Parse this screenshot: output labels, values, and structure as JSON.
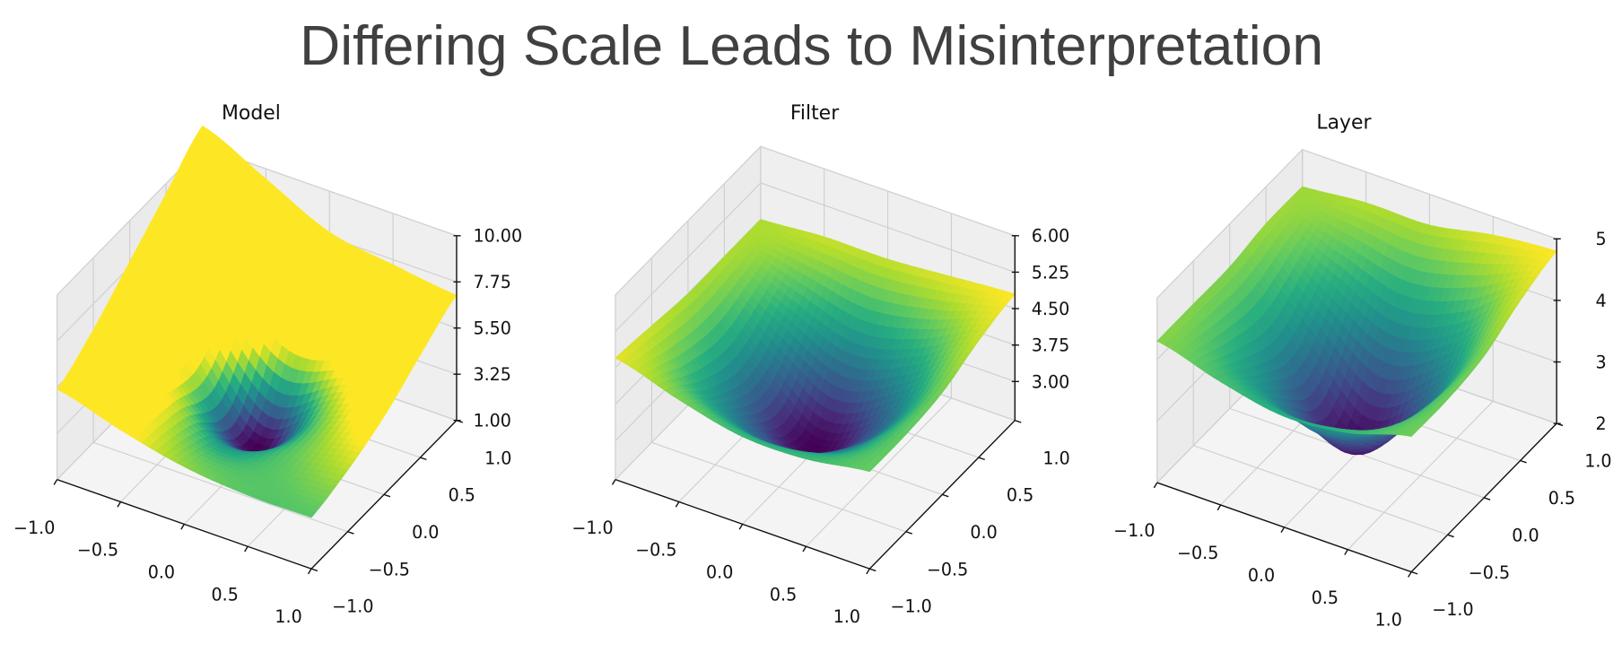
{
  "title": "Differing Scale Leads to Misinterpretation",
  "chart_data": [
    {
      "type": "surface",
      "title": "Model",
      "colormap": "viridis",
      "grid": true,
      "xlim": [
        -1,
        1
      ],
      "ylim": [
        -1,
        1
      ],
      "zlim": [
        1,
        10
      ],
      "x_ticks": [
        "−1.0",
        "−0.5",
        "0.0",
        "0.5",
        "1.0"
      ],
      "y_ticks": [
        "−1.0",
        "−0.5",
        "0.0",
        "0.5",
        "1.0"
      ],
      "z_ticks": [
        "1.00",
        "3.25",
        "5.50",
        "7.75",
        "10.00"
      ],
      "x": [
        -1,
        -0.5,
        0,
        0.5,
        1
      ],
      "y": [
        -1,
        -0.5,
        0,
        0.5,
        1
      ],
      "z": [
        [
          5.4,
          4.5,
          3.8,
          3.5,
          3.5
        ],
        [
          6.5,
          4.6,
          3.0,
          3.5,
          4.0
        ],
        [
          8.0,
          4.6,
          1.3,
          3.6,
          4.8
        ],
        [
          9.5,
          7.0,
          4.6,
          5.0,
          6.0
        ],
        [
          11.0,
          9.5,
          8.0,
          7.5,
          7.1
        ]
      ]
    },
    {
      "type": "surface",
      "title": "Filter",
      "colormap": "viridis",
      "grid": true,
      "xlim": [
        -1,
        1
      ],
      "ylim": [
        -1,
        1
      ],
      "zlim": [
        2.2,
        6
      ],
      "x_ticks": [
        "−1.0",
        "−0.5",
        "0.0",
        "0.5",
        "1.0"
      ],
      "y_ticks": [
        "−1.0",
        "−0.5",
        "0.0",
        "0.5",
        "1.0"
      ],
      "z_ticks": [
        "3.00",
        "3.75",
        "4.50",
        "5.25",
        "6.00"
      ],
      "x": [
        -1,
        -0.5,
        0,
        0.5,
        1
      ],
      "y": [
        -1,
        -0.5,
        0,
        0.5,
        1
      ],
      "z": [
        [
          4.7,
          4.3,
          4.0,
          4.0,
          4.2
        ],
        [
          4.6,
          3.6,
          3.0,
          3.4,
          4.2
        ],
        [
          4.5,
          3.3,
          2.3,
          3.1,
          4.3
        ],
        [
          4.5,
          3.9,
          3.4,
          3.8,
          4.6
        ],
        [
          4.5,
          4.6,
          4.6,
          4.7,
          4.8
        ]
      ]
    },
    {
      "type": "surface",
      "title": "Layer",
      "colormap": "viridis",
      "grid": true,
      "xlim": [
        -1,
        1
      ],
      "ylim": [
        -1,
        1
      ],
      "zlim": [
        2,
        5
      ],
      "x_ticks": [
        "−1.0",
        "−0.5",
        "0.0",
        "0.5",
        "1.0"
      ],
      "y_ticks": [
        "−1.0",
        "−0.5",
        "0.0",
        "0.5",
        "1.0"
      ],
      "z_ticks": [
        "2",
        "3",
        "4",
        "5"
      ],
      "x": [
        -1,
        -0.5,
        0,
        0.5,
        1
      ],
      "y": [
        -1,
        -0.5,
        0,
        0.5,
        1
      ],
      "z": [
        [
          4.3,
          4.0,
          3.8,
          3.9,
          4.2
        ],
        [
          4.3,
          3.5,
          2.9,
          3.3,
          4.2
        ],
        [
          4.3,
          3.2,
          2.1,
          3.0,
          4.3
        ],
        [
          4.4,
          3.8,
          3.3,
          3.7,
          4.6
        ],
        [
          4.4,
          4.5,
          4.5,
          4.7,
          4.8
        ]
      ]
    }
  ]
}
